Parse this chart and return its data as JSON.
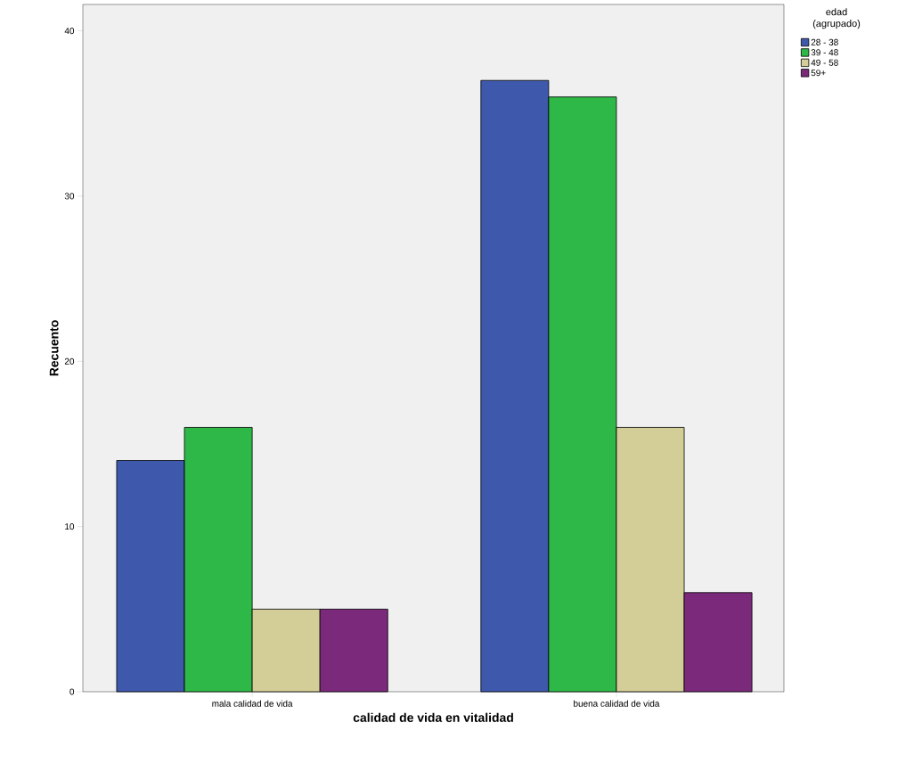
{
  "chart_data": {
    "type": "bar",
    "xlabel": "calidad de vida en vitalidad",
    "ylabel": "Recuento",
    "legend_title": "edad (agrupado)",
    "categories": [
      "mala calidad de vida",
      "buena calidad de vida"
    ],
    "series": [
      {
        "name": "28 - 38",
        "color": "#3e58ac",
        "values": [
          14,
          37
        ]
      },
      {
        "name": "39 - 48",
        "color": "#2eb848",
        "values": [
          16,
          36
        ]
      },
      {
        "name": "49 - 58",
        "color": "#d3ce97",
        "values": [
          5,
          16
        ]
      },
      {
        "name": "59+",
        "color": "#7b2a7b",
        "values": [
          5,
          6
        ]
      }
    ],
    "ylim": [
      0,
      41.6
    ],
    "yticks": [
      0,
      10,
      20,
      30,
      40
    ],
    "grid": false,
    "legend": "top right"
  }
}
